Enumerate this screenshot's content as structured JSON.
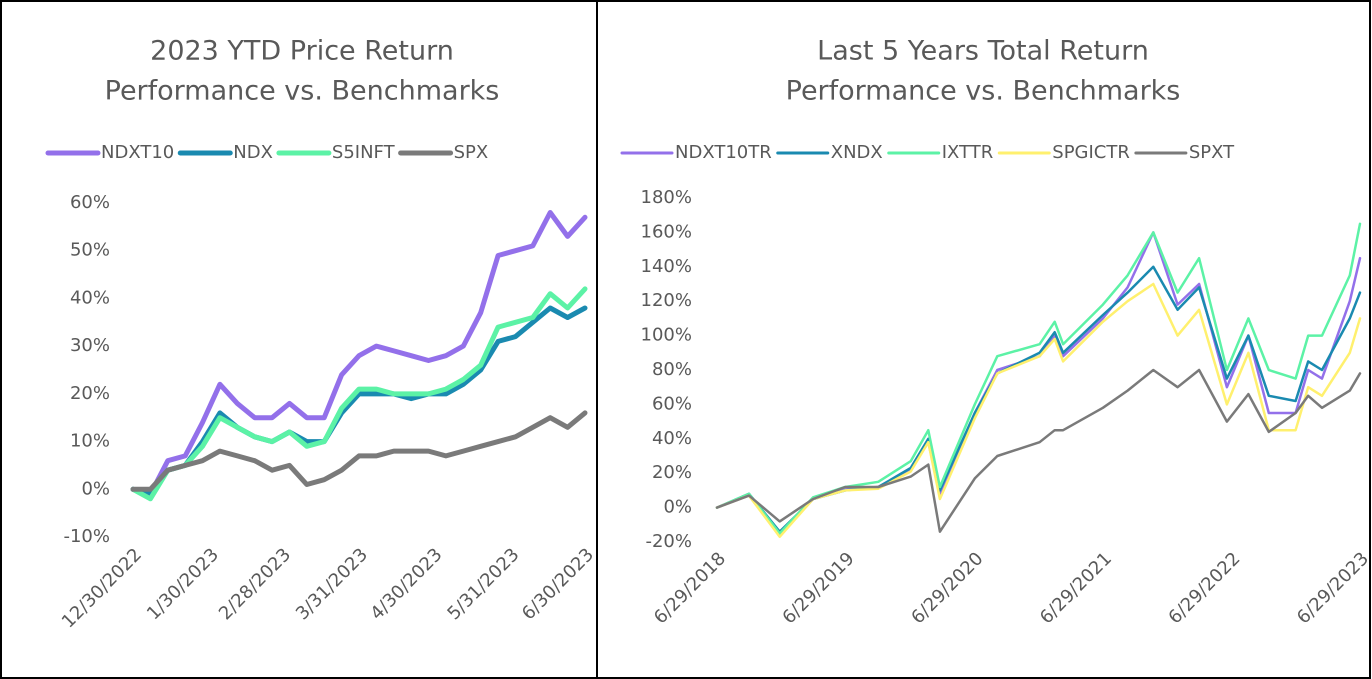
{
  "chart_data": [
    {
      "type": "line",
      "title": [
        "2023 YTD Price Return",
        "Performance vs. Benchmarks"
      ],
      "x": [
        "12/30/2022",
        "1/6/2023",
        "1/13/2023",
        "1/20/2023",
        "1/27/2023",
        "2/3/2023",
        "2/10/2023",
        "2/17/2023",
        "2/24/2023",
        "3/3/2023",
        "3/10/2023",
        "3/17/2023",
        "3/24/2023",
        "3/31/2023",
        "4/7/2023",
        "4/14/2023",
        "4/21/2023",
        "4/28/2023",
        "5/5/2023",
        "5/12/2023",
        "5/19/2023",
        "5/26/2023",
        "6/2/2023",
        "6/9/2023",
        "6/16/2023",
        "6/23/2023",
        "6/30/2023"
      ],
      "series": [
        {
          "name": "NDXT10",
          "color": "#9370ea",
          "values": [
            0,
            -1,
            6,
            7,
            14,
            22,
            18,
            15,
            15,
            18,
            15,
            15,
            24,
            28,
            30,
            29,
            28,
            27,
            28,
            30,
            37,
            49,
            50,
            51,
            58,
            53,
            57
          ]
        },
        {
          "name": "NDX",
          "color": "#1a8ab0",
          "values": [
            0,
            -1,
            4,
            5,
            10,
            16,
            13,
            11,
            10,
            12,
            10,
            10,
            16,
            20,
            20,
            20,
            19,
            20,
            20,
            22,
            25,
            31,
            32,
            35,
            38,
            36,
            38
          ]
        },
        {
          "name": "S5INFT",
          "color": "#5cf2a6",
          "values": [
            0,
            -2,
            4,
            5,
            9,
            15,
            13,
            11,
            10,
            12,
            9,
            10,
            17,
            21,
            21,
            20,
            20,
            20,
            21,
            23,
            26,
            34,
            35,
            36,
            41,
            38,
            42
          ]
        },
        {
          "name": "SPX",
          "color": "#7a7a7a",
          "values": [
            0,
            0,
            4,
            5,
            6,
            8,
            7,
            6,
            4,
            5,
            1,
            2,
            4,
            7,
            7,
            8,
            8,
            8,
            7,
            8,
            9,
            10,
            11,
            13,
            15,
            13,
            16
          ]
        }
      ],
      "xlim": [
        "12/30/2022",
        "6/30/2023"
      ],
      "xticks": [
        "12/30/2022",
        "1/30/2023",
        "2/28/2023",
        "3/31/2023",
        "4/30/2023",
        "5/31/2023",
        "6/30/2023"
      ],
      "ylim": [
        -10,
        60
      ],
      "yticks": [
        {
          "value": -10,
          "label": "-10%"
        },
        {
          "value": 0,
          "label": "0%"
        },
        {
          "value": 10,
          "label": "10%"
        },
        {
          "value": 20,
          "label": "20%"
        },
        {
          "value": 30,
          "label": "30%"
        },
        {
          "value": 40,
          "label": "40%"
        },
        {
          "value": 50,
          "label": "50%"
        },
        {
          "value": 60,
          "label": "60%"
        }
      ],
      "legend": "top",
      "grid": false
    },
    {
      "type": "line",
      "title": [
        "Last 5 Years Total Return",
        "Performance vs. Benchmarks"
      ],
      "x": [
        "6/29/2018",
        "9/28/2018",
        "12/24/2018",
        "3/29/2019",
        "6/28/2019",
        "9/30/2019",
        "12/31/2019",
        "2/19/2020",
        "3/23/2020",
        "6/30/2020",
        "9/2/2020",
        "12/31/2020",
        "2/12/2021",
        "3/8/2021",
        "6/29/2021",
        "9/7/2021",
        "11/19/2021",
        "1/27/2022",
        "3/29/2022",
        "6/16/2022",
        "8/16/2022",
        "10/13/2022",
        "12/28/2022",
        "2/2/2023",
        "3/13/2023",
        "5/31/2023",
        "6/29/2023"
      ],
      "series": [
        {
          "name": "NDXT10TR",
          "color": "#9370ea",
          "values": [
            0,
            7,
            -16,
            5,
            11,
            12,
            22,
            38,
            8,
            55,
            80,
            88,
            100,
            88,
            110,
            128,
            160,
            118,
            130,
            70,
            100,
            55,
            55,
            80,
            75,
            120,
            145
          ]
        },
        {
          "name": "XNDX",
          "color": "#1a8ab0",
          "values": [
            0,
            8,
            -14,
            5,
            10,
            12,
            23,
            40,
            10,
            55,
            78,
            90,
            102,
            90,
            112,
            125,
            140,
            115,
            128,
            75,
            100,
            65,
            62,
            85,
            80,
            110,
            125
          ]
        },
        {
          "name": "IXTTR",
          "color": "#5cf2a6",
          "values": [
            0,
            8,
            -15,
            6,
            12,
            15,
            27,
            45,
            12,
            60,
            88,
            95,
            108,
            95,
            118,
            135,
            160,
            125,
            145,
            80,
            110,
            80,
            75,
            100,
            100,
            135,
            165
          ]
        },
        {
          "name": "SPGICTR",
          "color": "#fff06e",
          "values": [
            0,
            7,
            -17,
            5,
            10,
            11,
            21,
            38,
            5,
            52,
            78,
            88,
            98,
            85,
            108,
            120,
            130,
            100,
            115,
            60,
            90,
            45,
            45,
            70,
            65,
            90,
            110
          ]
        },
        {
          "name": "SPXT",
          "color": "#7a7a7a",
          "values": [
            0,
            7,
            -8,
            5,
            12,
            12,
            18,
            25,
            -14,
            17,
            30,
            38,
            45,
            45,
            58,
            68,
            80,
            70,
            80,
            50,
            66,
            44,
            55,
            65,
            58,
            68,
            78
          ]
        }
      ],
      "xlim": [
        "6/29/2018",
        "6/29/2023"
      ],
      "xticks": [
        "6/29/2018",
        "6/29/2019",
        "6/29/2020",
        "6/29/2021",
        "6/29/2022",
        "6/29/2023"
      ],
      "ylim": [
        -20,
        180
      ],
      "yticks": [
        {
          "value": -20,
          "label": "-20%"
        },
        {
          "value": 0,
          "label": "0%"
        },
        {
          "value": 20,
          "label": "20%"
        },
        {
          "value": 40,
          "label": "40%"
        },
        {
          "value": 60,
          "label": "60%"
        },
        {
          "value": 80,
          "label": "80%"
        },
        {
          "value": 100,
          "label": "100%"
        },
        {
          "value": 120,
          "label": "120%"
        },
        {
          "value": 140,
          "label": "140%"
        },
        {
          "value": 160,
          "label": "160%"
        },
        {
          "value": 180,
          "label": "180%"
        }
      ],
      "legend": "top",
      "grid": false
    }
  ]
}
